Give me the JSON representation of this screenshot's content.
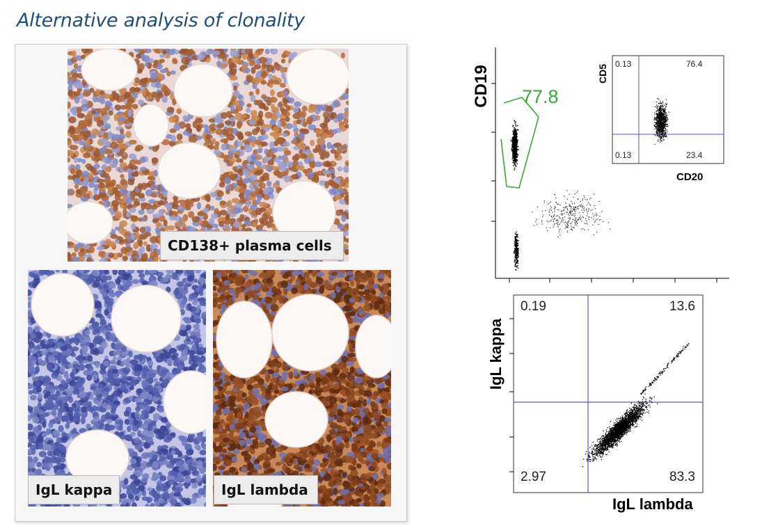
{
  "slide": {
    "title": "Alternative analysis of clonality"
  },
  "micrographs": {
    "cd138": {
      "caption": "CD138+ plasma cells"
    },
    "kappa": {
      "caption": "IgL kappa"
    },
    "lambda": {
      "caption": "IgL lambda"
    }
  },
  "flow_top": {
    "y_axis_label": "CD19",
    "gate_value": "77.8",
    "gate_color": "#33aa33",
    "inset": {
      "x_axis_label": "CD20",
      "y_axis_label": "CD5",
      "q_upper_left": "0.13",
      "q_upper_right": "76.4",
      "q_lower_left": "0.13",
      "q_lower_right": "23.4",
      "line_color": "#5555cc"
    }
  },
  "flow_bottom": {
    "x_axis_label": "IgL lambda",
    "y_axis_label": "IgL kappa",
    "q_upper_left": "0.19",
    "q_upper_right": "13.6",
    "q_lower_left": "2.97",
    "q_lower_right": "83.3",
    "line_color": "#5555cc"
  }
}
